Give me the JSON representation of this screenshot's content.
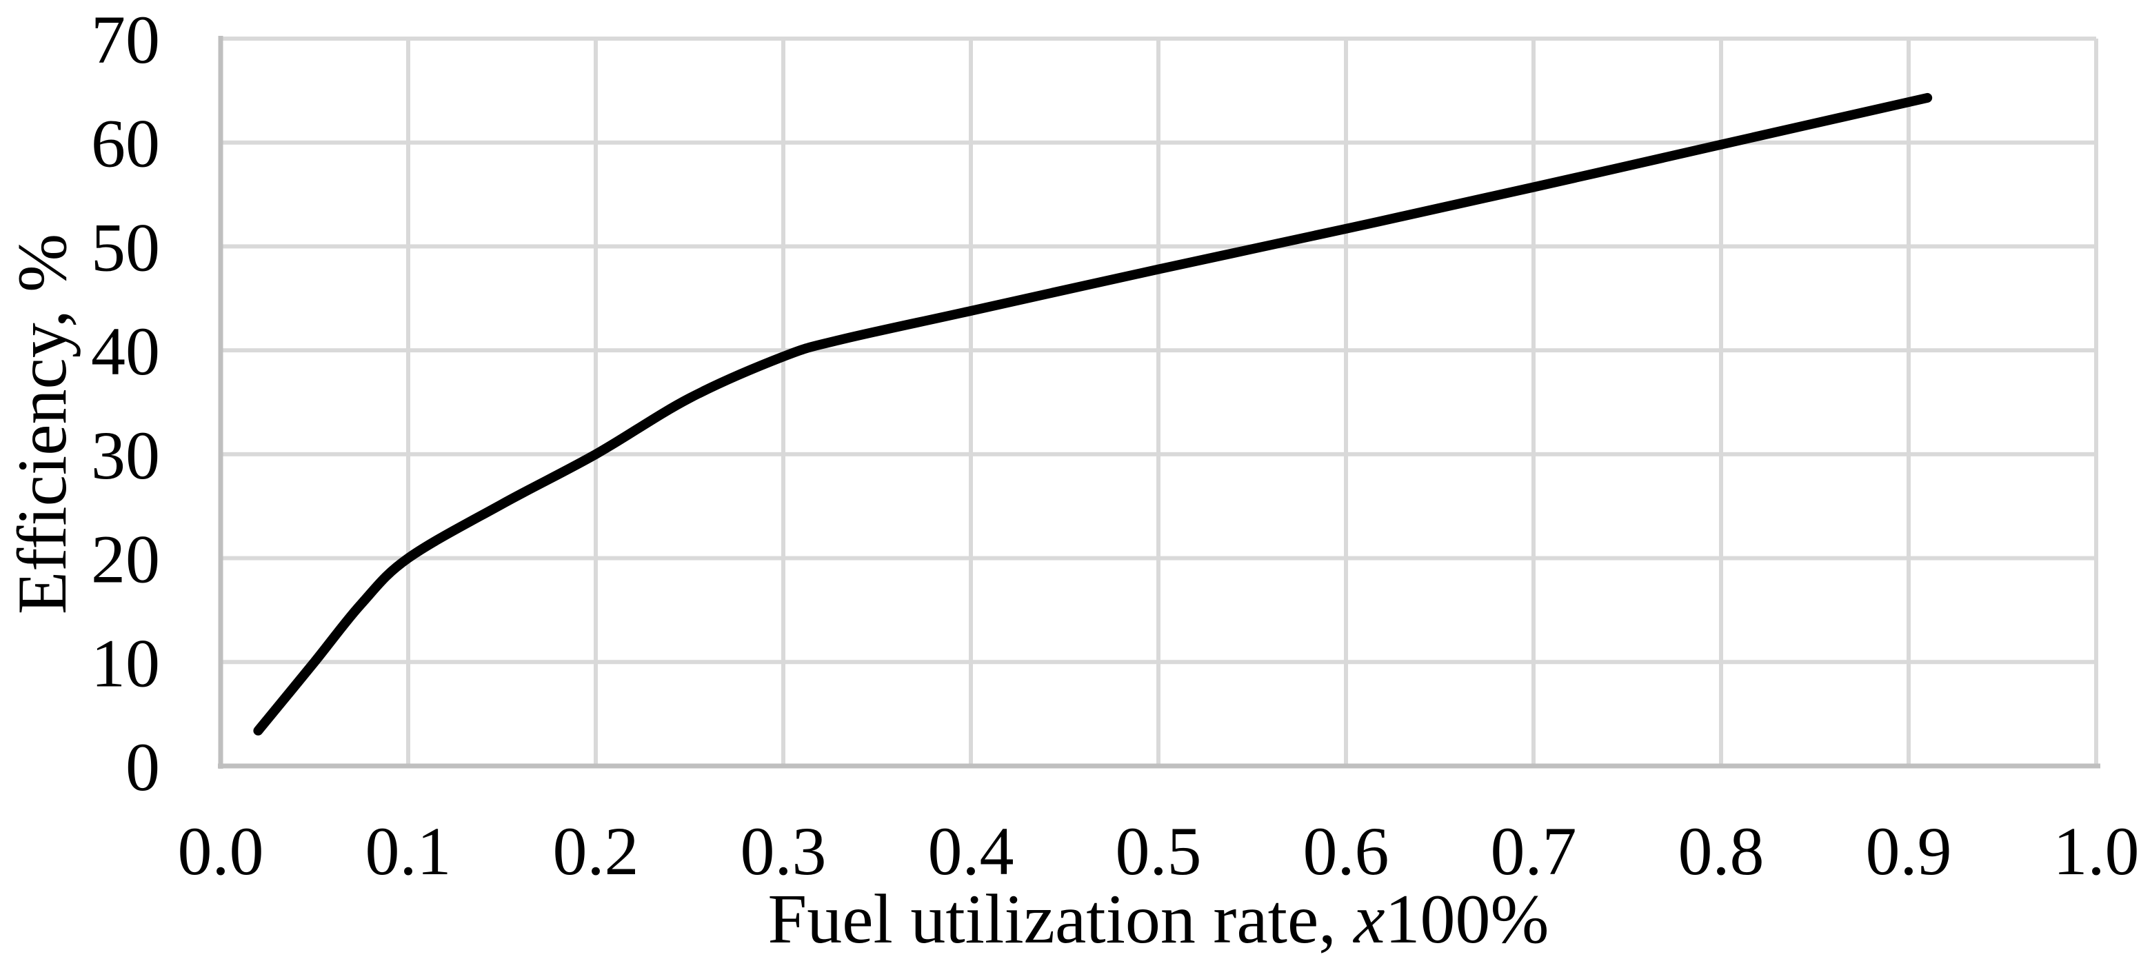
{
  "chart_data": {
    "type": "line",
    "title": "",
    "xlabel": "Fuel utilization rate, x100%",
    "xlabel_parts": {
      "prefix": "Fuel utilization rate, ",
      "italic_x": "x",
      "suffix": "100%"
    },
    "ylabel": "Efficiency, %",
    "xlim": [
      0.0,
      1.0
    ],
    "ylim": [
      0,
      70
    ],
    "x_ticks": [
      0.0,
      0.1,
      0.2,
      0.3,
      0.4,
      0.5,
      0.6,
      0.7,
      0.8,
      0.9,
      1.0
    ],
    "x_tick_labels": [
      "0.0",
      "0.1",
      "0.2",
      "0.3",
      "0.4",
      "0.5",
      "0.6",
      "0.7",
      "0.8",
      "0.9",
      "1.0"
    ],
    "y_ticks": [
      0,
      10,
      20,
      30,
      40,
      50,
      60,
      70
    ],
    "y_tick_labels": [
      "0",
      "10",
      "20",
      "30",
      "40",
      "50",
      "60",
      "70"
    ],
    "grid": true,
    "legend": false,
    "series": [
      {
        "name": "efficiency",
        "color": "#000000",
        "points": [
          [
            0.02,
            3.4
          ],
          [
            0.05,
            10.0
          ],
          [
            0.075,
            15.6
          ],
          [
            0.1,
            20.0
          ],
          [
            0.15,
            25.2
          ],
          [
            0.2,
            30.0
          ],
          [
            0.25,
            35.4
          ],
          [
            0.3,
            39.4
          ],
          [
            0.33,
            41.0
          ],
          [
            0.4,
            43.8
          ],
          [
            0.5,
            47.8
          ],
          [
            0.6,
            51.7
          ],
          [
            0.7,
            55.7
          ],
          [
            0.8,
            59.8
          ],
          [
            0.91,
            64.3
          ]
        ]
      }
    ],
    "colors": {
      "background": "#ffffff",
      "gridline": "#d9d9d9",
      "axis_line": "#bfbfbf",
      "series_line": "#000000",
      "text": "#000000"
    }
  }
}
